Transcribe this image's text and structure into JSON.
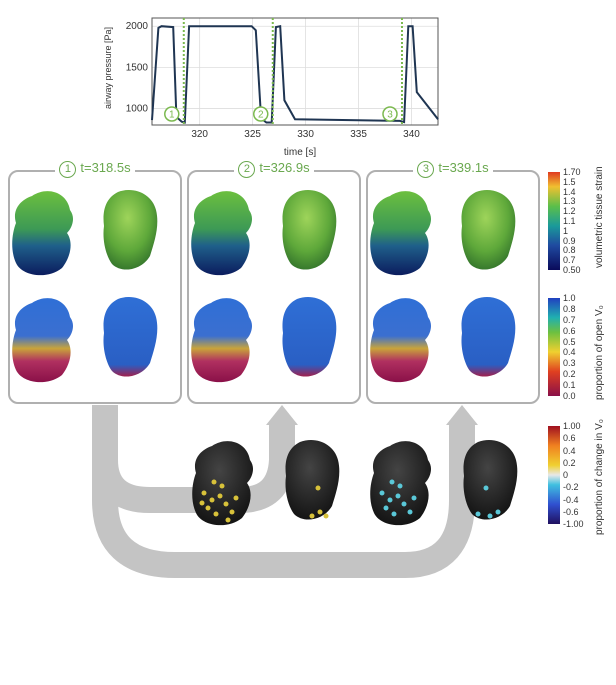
{
  "chart_data": {
    "type": "line",
    "xlabel": "time [s]",
    "ylabel": "airway pressure [Pa]",
    "xlim": [
      315.5,
      342.5
    ],
    "ylim": [
      800,
      2100
    ],
    "x_ticks": [
      320,
      325,
      330,
      335,
      340
    ],
    "y_ticks": [
      1000,
      1500,
      2000
    ],
    "series": [
      {
        "name": "airway pressure",
        "x": [
          315.5,
          316.1,
          316.4,
          317.5,
          317.8,
          318.3,
          318.6,
          319.0,
          324.9,
          325.3,
          325.8,
          326.3,
          326.8,
          327.2,
          327.6,
          328.0,
          329.0,
          338.9,
          339.3,
          339.7,
          340.1,
          340.5,
          342.5
        ],
        "y": [
          860,
          1980,
          2000,
          1990,
          900,
          840,
          830,
          2000,
          2000,
          1950,
          880,
          830,
          830,
          1990,
          2000,
          1100,
          870,
          850,
          835,
          2000,
          2000,
          1200,
          870
        ]
      }
    ],
    "markers": [
      {
        "x": 318.5,
        "label": "1"
      },
      {
        "x": 326.9,
        "label": "2"
      },
      {
        "x": 339.1,
        "label": "3"
      }
    ]
  },
  "panels": [
    {
      "num": "1",
      "label": "t=318.5s"
    },
    {
      "num": "2",
      "label": "t=326.9s"
    },
    {
      "num": "3",
      "label": "t=339.1s"
    }
  ],
  "colorbars": {
    "strain": {
      "title": "volumetric tissue strain",
      "ticks": [
        "1.70",
        "1.5",
        "1.4",
        "1.3",
        "1.2",
        "1.1",
        "1",
        "0.9",
        "0.8",
        "0.7",
        "0.50"
      ]
    },
    "open": {
      "title": "proportion of open V₀",
      "ticks": [
        "1.0",
        "0.8",
        "0.7",
        "0.6",
        "0.5",
        "0.4",
        "0.3",
        "0.2",
        "0.1",
        "0.0"
      ]
    },
    "change": {
      "title": "proportion of change in V₀",
      "ticks": [
        "1.00",
        "0.6",
        "0.4",
        "0.2",
        "0",
        "-0.2",
        "-0.4",
        "-0.6",
        "-1.00"
      ]
    }
  },
  "colors": {
    "line": "#1f3552",
    "marker": "#7bb94f",
    "frame": "#b0b0b0",
    "arrow": "#c4c4c4"
  }
}
